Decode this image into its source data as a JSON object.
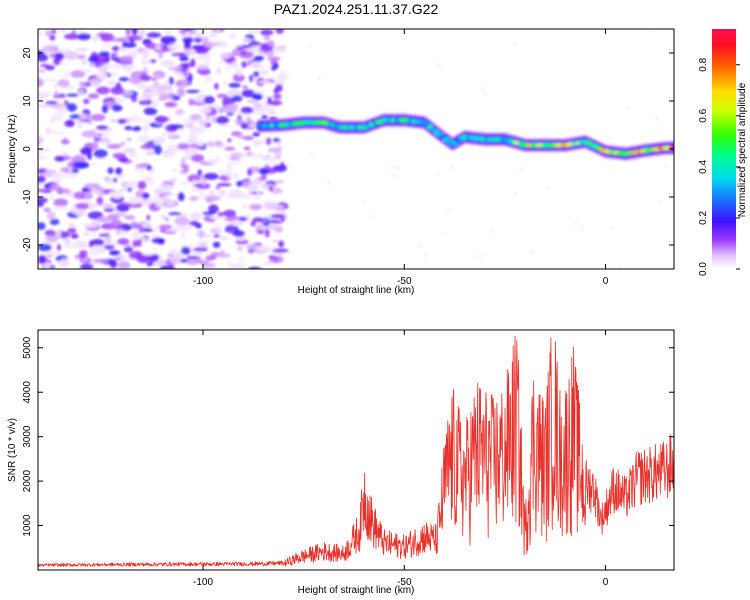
{
  "title": "PAZ1.2024.251.11.37.G22",
  "chart_data": [
    {
      "type": "heatmap",
      "xlabel": "Height of straight line (km)",
      "ylabel": "Frequency (Hz)",
      "xlim": [
        -141,
        17
      ],
      "ylim": [
        -25,
        25
      ],
      "xticks": [
        -100,
        -50,
        0
      ],
      "yticks": [
        -20,
        -10,
        0,
        10,
        20
      ],
      "colorbar": {
        "label": "Normalized spectral amplitude",
        "range": [
          0.0,
          0.94
        ],
        "ticks": [
          0.0,
          0.2,
          0.4,
          0.6,
          0.8
        ]
      },
      "ridge": [
        {
          "x": -86,
          "y": 4.8,
          "amp": 0.35
        },
        {
          "x": -80,
          "y": 5.0,
          "amp": 0.5
        },
        {
          "x": -75,
          "y": 5.5,
          "amp": 0.55
        },
        {
          "x": -70,
          "y": 5.5,
          "amp": 0.6
        },
        {
          "x": -66,
          "y": 4.5,
          "amp": 0.5
        },
        {
          "x": -60,
          "y": 4.5,
          "amp": 0.45
        },
        {
          "x": -55,
          "y": 6.0,
          "amp": 0.5
        },
        {
          "x": -50,
          "y": 6.0,
          "amp": 0.55
        },
        {
          "x": -45,
          "y": 5.5,
          "amp": 0.5
        },
        {
          "x": -42,
          "y": 3.5,
          "amp": 0.45
        },
        {
          "x": -38,
          "y": 1.0,
          "amp": 0.4
        },
        {
          "x": -35,
          "y": 2.5,
          "amp": 0.45
        },
        {
          "x": -30,
          "y": 2.0,
          "amp": 0.5
        },
        {
          "x": -25,
          "y": 2.0,
          "amp": 0.5
        },
        {
          "x": -20,
          "y": 0.8,
          "amp": 0.8
        },
        {
          "x": -15,
          "y": 0.8,
          "amp": 0.7
        },
        {
          "x": -10,
          "y": 0.8,
          "amp": 0.75
        },
        {
          "x": -5,
          "y": 1.5,
          "amp": 0.6
        },
        {
          "x": 0,
          "y": -0.5,
          "amp": 0.75
        },
        {
          "x": 5,
          "y": -1.0,
          "amp": 0.8
        },
        {
          "x": 10,
          "y": -0.3,
          "amp": 0.75
        },
        {
          "x": 15,
          "y": 0.2,
          "amp": 0.9
        },
        {
          "x": 17,
          "y": 0.2,
          "amp": 0.9
        }
      ]
    },
    {
      "type": "line",
      "xlabel": "Height of straight line (km)",
      "ylabel": "SNR (10 * v/v)",
      "xlim": [
        -141,
        17
      ],
      "ylim": [
        0,
        5400
      ],
      "xticks": [
        -100,
        -50,
        0
      ],
      "yticks": [
        1000,
        2000,
        3000,
        4000,
        5000
      ],
      "color": "#e8302a",
      "series_envelope": [
        {
          "x": -141,
          "y": 130
        },
        {
          "x": -120,
          "y": 150
        },
        {
          "x": -100,
          "y": 160
        },
        {
          "x": -85,
          "y": 170
        },
        {
          "x": -80,
          "y": 190
        },
        {
          "x": -76,
          "y": 380
        },
        {
          "x": -70,
          "y": 560
        },
        {
          "x": -65,
          "y": 480
        },
        {
          "x": -61,
          "y": 1200
        },
        {
          "x": -60,
          "y": 2300
        },
        {
          "x": -58,
          "y": 1400
        },
        {
          "x": -55,
          "y": 800
        },
        {
          "x": -50,
          "y": 700
        },
        {
          "x": -45,
          "y": 1000
        },
        {
          "x": -42,
          "y": 900
        },
        {
          "x": -40,
          "y": 2800
        },
        {
          "x": -38,
          "y": 3800
        },
        {
          "x": -35,
          "y": 3000
        },
        {
          "x": -32,
          "y": 4000
        },
        {
          "x": -28,
          "y": 3600
        },
        {
          "x": -25,
          "y": 3900
        },
        {
          "x": -22,
          "y": 5100
        },
        {
          "x": -20,
          "y": 1200
        },
        {
          "x": -18,
          "y": 4300
        },
        {
          "x": -15,
          "y": 3500
        },
        {
          "x": -13,
          "y": 5400
        },
        {
          "x": -11,
          "y": 3500
        },
        {
          "x": -8,
          "y": 4700
        },
        {
          "x": -5,
          "y": 2400
        },
        {
          "x": -3,
          "y": 2300
        },
        {
          "x": -1,
          "y": 1400
        },
        {
          "x": 2,
          "y": 2300
        },
        {
          "x": 5,
          "y": 2000
        },
        {
          "x": 8,
          "y": 2600
        },
        {
          "x": 12,
          "y": 2700
        },
        {
          "x": 15,
          "y": 2800
        },
        {
          "x": 17,
          "y": 3000
        }
      ]
    }
  ]
}
